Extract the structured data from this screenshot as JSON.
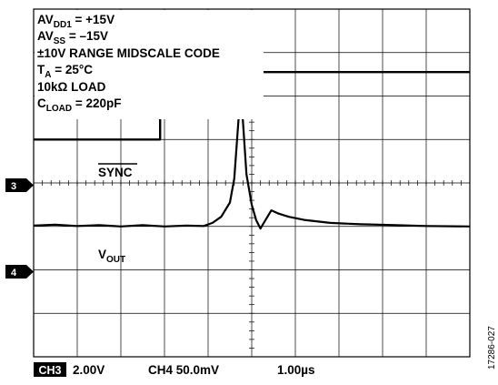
{
  "chart_data": {
    "type": "line",
    "annotations": {
      "avdd": {
        "main": "AV",
        "sub": "DD1",
        "rest": " = +15V"
      },
      "avss": {
        "main": "AV",
        "sub": "SS",
        "rest": " = –15V"
      },
      "range": "±10V RANGE MIDSCALE CODE",
      "ta": {
        "main": "T",
        "sub": "A",
        "rest": " = 25°C"
      },
      "load": "10kΩ LOAD",
      "cload": {
        "main": "C",
        "sub": "LOAD",
        "rest": " = 220pF"
      }
    },
    "channel_markers": [
      "3",
      "4"
    ],
    "grid": true,
    "x_divisions": 10,
    "y_divisions": 8,
    "time_per_div_us": 1.0,
    "series": [
      {
        "name": "SYNC",
        "channel": "CH3",
        "volts_per_div": 2.0,
        "reference_div": 3.0,
        "points_div": [
          [
            0.0,
            0.0
          ],
          [
            2.9,
            0.0
          ],
          [
            2.9,
            1.55
          ],
          [
            10.0,
            1.55
          ]
        ]
      },
      {
        "name": "V",
        "sub": "OUT",
        "channel": "CH4",
        "millivolts_per_div": 50.0,
        "reference_div": 5.0,
        "points_div": [
          [
            0.0,
            0.02
          ],
          [
            0.5,
            0.04
          ],
          [
            1.0,
            0.01
          ],
          [
            1.5,
            0.03
          ],
          [
            2.0,
            0.0
          ],
          [
            2.5,
            0.03
          ],
          [
            3.0,
            0.0
          ],
          [
            3.5,
            0.02
          ],
          [
            3.9,
            0.01
          ],
          [
            4.1,
            0.08
          ],
          [
            4.3,
            0.22
          ],
          [
            4.5,
            0.55
          ],
          [
            4.6,
            1.1
          ],
          [
            4.7,
            2.5
          ],
          [
            4.75,
            3.1
          ],
          [
            4.8,
            2.4
          ],
          [
            4.88,
            1.2
          ],
          [
            5.0,
            0.5
          ],
          [
            5.1,
            0.15
          ],
          [
            5.2,
            -0.05
          ],
          [
            5.3,
            0.12
          ],
          [
            5.45,
            0.37
          ],
          [
            5.6,
            0.3
          ],
          [
            5.85,
            0.22
          ],
          [
            6.2,
            0.15
          ],
          [
            6.8,
            0.08
          ],
          [
            7.5,
            0.05
          ],
          [
            8.3,
            0.03
          ],
          [
            9.0,
            0.01
          ],
          [
            10.0,
            0.0
          ]
        ]
      }
    ],
    "footer": {
      "ch3_label": "CH3",
      "ch3_scale": "2.00V",
      "ch4_text": "CH4 50.0mV",
      "time_text": "1.00µs"
    },
    "side_label": "17286-027"
  }
}
